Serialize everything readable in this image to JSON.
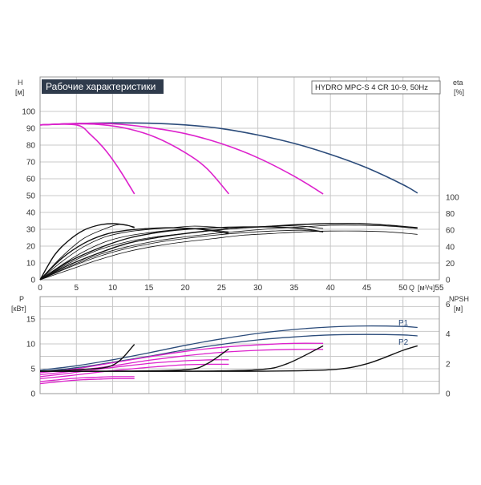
{
  "chart_data": [
    {
      "type": "line",
      "title": "Рабочие характеристики",
      "subtitle": "HYDRO MPC-S 4 CR 10-9, 50Hz",
      "xlabel": "Q",
      "xunit": "[м³/ч]",
      "ylabel": "H",
      "yunit": "[м]",
      "y2label": "eta",
      "y2unit": "[%]",
      "xlim": [
        0,
        55
      ],
      "ylim": [
        0,
        100
      ],
      "y2lim": [
        0,
        100
      ],
      "grid": true,
      "x_ticks": [
        0,
        5,
        10,
        15,
        20,
        25,
        30,
        35,
        40,
        45,
        50,
        55
      ],
      "y_ticks": [
        0,
        10,
        20,
        30,
        40,
        50,
        60,
        70,
        80,
        90,
        100
      ],
      "y2_ticks": [
        0,
        20,
        40,
        60,
        80,
        100
      ],
      "colors": {
        "full_speed": "#2b4b7a",
        "reduced_speed": "#dd22cc",
        "efficiency": "#111111"
      },
      "series": [
        {
          "group": "head",
          "color": "#2b4b7a",
          "x": [
            0,
            5,
            10,
            15,
            20,
            25,
            30,
            35,
            40,
            45,
            50,
            52
          ],
          "y": [
            92,
            92.8,
            93.2,
            93,
            92,
            89.8,
            86,
            81,
            74.5,
            66.5,
            56.5,
            51.5
          ]
        },
        {
          "group": "head",
          "color": "#dd22cc",
          "x": [
            0,
            5,
            10,
            15,
            20,
            25,
            30,
            35,
            39
          ],
          "y": [
            92,
            92.8,
            92.6,
            90.5,
            86.8,
            80.8,
            72.5,
            61.5,
            51
          ]
        },
        {
          "group": "head",
          "color": "#dd22cc",
          "x": [
            0,
            4,
            8,
            12,
            16,
            20,
            23,
            26
          ],
          "y": [
            92,
            92.6,
            92.3,
            89.8,
            84.5,
            75.5,
            66,
            51
          ]
        },
        {
          "group": "head",
          "color": "#dd22cc",
          "x": [
            0,
            5,
            7,
            9,
            11,
            13
          ],
          "y": [
            92,
            92,
            86,
            77,
            65,
            51
          ]
        },
        {
          "group": "eta",
          "color": "#111111",
          "x": [
            0,
            3,
            6,
            9,
            11,
            13
          ],
          "y": [
            0,
            28,
            50,
            62,
            67,
            64
          ]
        },
        {
          "group": "eta",
          "color": "#111111",
          "x": [
            0,
            3,
            6,
            9,
            12,
            15,
            18,
            21,
            24,
            26
          ],
          "y": [
            0,
            22,
            40,
            52,
            58,
            61,
            63,
            65,
            64,
            62
          ]
        },
        {
          "group": "eta",
          "color": "#111111",
          "x": [
            0,
            4,
            8,
            12,
            16,
            20,
            24,
            28,
            32,
            36,
            39
          ],
          "y": [
            0,
            20,
            36,
            46,
            52,
            56,
            60,
            63,
            65,
            65,
            62
          ]
        },
        {
          "group": "eta",
          "color": "#111111",
          "x": [
            0,
            4,
            8,
            12,
            16,
            20,
            24,
            28,
            32,
            36,
            40,
            44,
            48,
            52
          ],
          "y": [
            0,
            16,
            30,
            40,
            47,
            52,
            56,
            59,
            62,
            64,
            66,
            66,
            65,
            62
          ]
        },
        {
          "group": "eta",
          "color": "#111111",
          "x": [
            0,
            3,
            6,
            9,
            12,
            15,
            18,
            21,
            24,
            26
          ],
          "y": [
            0,
            18,
            34,
            46,
            53,
            57,
            60,
            62,
            60,
            58
          ]
        },
        {
          "group": "eta",
          "color": "#111111",
          "x": [
            0,
            4,
            8,
            12,
            16,
            20,
            24,
            28,
            32,
            36,
            39
          ],
          "y": [
            0,
            15,
            28,
            38,
            45,
            50,
            54,
            57,
            59,
            60,
            58
          ]
        },
        {
          "group": "eta",
          "color": "#111111",
          "x": [
            0,
            4,
            8,
            12,
            16,
            20,
            24,
            28,
            32,
            36,
            40,
            44,
            48,
            52
          ],
          "y": [
            0,
            12,
            24,
            34,
            41,
            46,
            50,
            54,
            56,
            58,
            59,
            59,
            58,
            55
          ]
        },
        {
          "group": "eta",
          "color": "#111111",
          "x": [
            0,
            2,
            4,
            6,
            8,
            10,
            12,
            13
          ],
          "y": [
            0,
            30,
            48,
            60,
            66,
            68,
            66,
            63
          ]
        },
        {
          "group": "eta",
          "color": "#111111",
          "x": [
            0,
            4,
            8,
            12,
            16,
            20,
            24,
            28,
            32,
            36,
            39
          ],
          "y": [
            0,
            22,
            38,
            50,
            57,
            61,
            63,
            64,
            64,
            62,
            58
          ]
        },
        {
          "group": "eta",
          "color": "#111111",
          "x": [
            0,
            4,
            8,
            12,
            16,
            20,
            24,
            28,
            32,
            36,
            40,
            44,
            48,
            52
          ],
          "y": [
            0,
            18,
            32,
            44,
            51,
            56,
            60,
            63,
            65,
            67,
            68,
            68,
            66,
            63
          ]
        },
        {
          "group": "eta",
          "color": "#111111",
          "x": [
            0,
            3,
            6,
            9,
            12,
            15,
            18,
            21,
            24,
            26
          ],
          "y": [
            0,
            26,
            44,
            55,
            60,
            62,
            63,
            62,
            59,
            56
          ]
        }
      ]
    },
    {
      "type": "line",
      "xlim": [
        0,
        55
      ],
      "ylabel": "P",
      "yunit": "[кВт]",
      "ylim": [
        0,
        20
      ],
      "y2label": "NPSH",
      "y2unit": "[м]",
      "y2lim": [
        0,
        6.5
      ],
      "grid": true,
      "y_ticks": [
        0,
        5,
        10,
        15
      ],
      "y2_ticks": [
        0,
        2,
        4,
        6
      ],
      "labels": {
        "p1": "P1",
        "p2": "P2"
      },
      "series": [
        {
          "name": "P1",
          "group": "power",
          "color": "#2b4b7a",
          "x": [
            0,
            5,
            10,
            15,
            20,
            25,
            30,
            35,
            40,
            45,
            50,
            52
          ],
          "y": [
            4.7,
            5.6,
            6.8,
            8.2,
            9.7,
            11.0,
            12.1,
            12.9,
            13.4,
            13.6,
            13.5,
            13.3
          ]
        },
        {
          "name": "P2",
          "group": "power",
          "color": "#2b4b7a",
          "x": [
            0,
            5,
            10,
            15,
            20,
            25,
            30,
            35,
            40,
            45,
            50,
            52
          ],
          "y": [
            4.4,
            5.2,
            6.3,
            7.5,
            8.8,
            9.9,
            10.8,
            11.4,
            11.8,
            11.9,
            11.8,
            11.6
          ]
        },
        {
          "group": "power",
          "color": "#dd22cc",
          "x": [
            0,
            5,
            10,
            15,
            20,
            25,
            30,
            35,
            39
          ],
          "y": [
            4.2,
            5.0,
            6.2,
            7.4,
            8.5,
            9.3,
            9.8,
            10.1,
            10.1
          ]
        },
        {
          "group": "power",
          "color": "#dd22cc",
          "x": [
            0,
            5,
            10,
            15,
            20,
            25,
            30,
            35,
            39
          ],
          "y": [
            3.8,
            4.6,
            5.6,
            6.7,
            7.6,
            8.3,
            8.7,
            8.9,
            8.9
          ]
        },
        {
          "group": "power",
          "color": "#dd22cc",
          "x": [
            0,
            4,
            8,
            12,
            16,
            20,
            24,
            26
          ],
          "y": [
            3.4,
            4.1,
            4.9,
            5.6,
            6.2,
            6.6,
            6.8,
            6.8
          ]
        },
        {
          "group": "power",
          "color": "#dd22cc",
          "x": [
            0,
            4,
            8,
            12,
            16,
            20,
            24,
            26
          ],
          "y": [
            3.0,
            3.6,
            4.3,
            4.9,
            5.4,
            5.8,
            5.9,
            5.9
          ]
        },
        {
          "group": "power",
          "color": "#dd22cc",
          "x": [
            0,
            2,
            4,
            6,
            8,
            10,
            12,
            13
          ],
          "y": [
            2.4,
            2.7,
            3.0,
            3.2,
            3.3,
            3.4,
            3.4,
            3.4
          ]
        },
        {
          "group": "power",
          "color": "#dd22cc",
          "x": [
            0,
            2,
            4,
            6,
            8,
            10,
            12,
            13
          ],
          "y": [
            2.0,
            2.3,
            2.6,
            2.8,
            2.9,
            3.0,
            3.0,
            3.0
          ]
        },
        {
          "group": "npsh",
          "color": "#111111",
          "x": [
            0,
            5,
            10,
            13
          ],
          "y": [
            1.5,
            1.6,
            1.9,
            3.3
          ]
        },
        {
          "group": "npsh",
          "color": "#111111",
          "x": [
            0,
            10,
            20,
            23,
            26
          ],
          "y": [
            1.5,
            1.5,
            1.6,
            2.0,
            3.0
          ]
        },
        {
          "group": "npsh",
          "color": "#111111",
          "x": [
            0,
            10,
            20,
            30,
            34,
            39
          ],
          "y": [
            1.5,
            1.5,
            1.5,
            1.6,
            2.0,
            3.2
          ]
        },
        {
          "group": "npsh",
          "color": "#111111",
          "x": [
            0,
            10,
            20,
            30,
            40,
            45,
            50,
            52
          ],
          "y": [
            1.5,
            1.5,
            1.5,
            1.5,
            1.6,
            2.0,
            2.9,
            3.2
          ]
        }
      ]
    }
  ]
}
